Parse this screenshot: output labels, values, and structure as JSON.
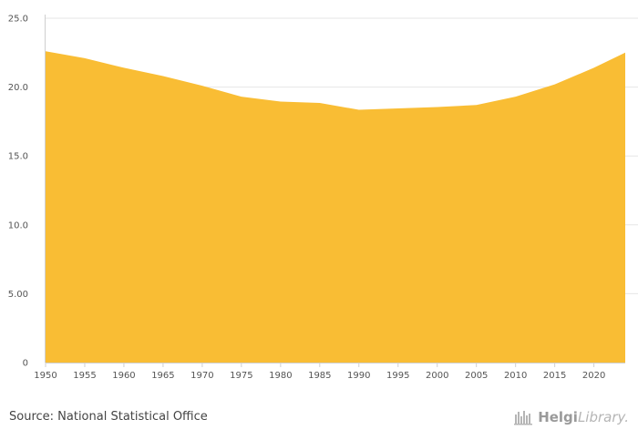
{
  "chart_data": {
    "type": "area",
    "x": [
      1950,
      1955,
      1960,
      1965,
      1970,
      1975,
      1980,
      1985,
      1990,
      1995,
      2000,
      2005,
      2010,
      2015,
      2020,
      2024
    ],
    "values": [
      22.6,
      22.1,
      21.4,
      20.8,
      20.1,
      19.3,
      18.95,
      18.85,
      18.35,
      18.45,
      18.55,
      18.7,
      19.3,
      20.2,
      21.4,
      22.5
    ],
    "xticks": [
      1950,
      1955,
      1960,
      1965,
      1970,
      1975,
      1980,
      1985,
      1990,
      1995,
      2000,
      2005,
      2010,
      2015,
      2020
    ],
    "xtick_labels": [
      "1950",
      "1955",
      "1960",
      "1965",
      "1970",
      "1975",
      "1980",
      "1985",
      "1990",
      "1995",
      "2000",
      "2005",
      "2010",
      "2015",
      "2020"
    ],
    "yticks": [
      0,
      5,
      10,
      15,
      20,
      25
    ],
    "ytick_labels": [
      "0",
      "5.00",
      "10.0",
      "15.0",
      "20.0",
      "25.0"
    ],
    "ylim": [
      0,
      25
    ],
    "xlim": [
      1950,
      2024
    ],
    "title": "",
    "xlabel": "",
    "ylabel": "",
    "grid": true,
    "colors": {
      "area": "#F9BD34",
      "grid": "#e6e6e6",
      "axis": "#cfcfcf"
    }
  },
  "footer": {
    "source": "Source: National Statistical Office",
    "brand_bold": "Helgi",
    "brand_light": "Library.",
    "brand_icon": "helgi-library-logo-icon"
  }
}
